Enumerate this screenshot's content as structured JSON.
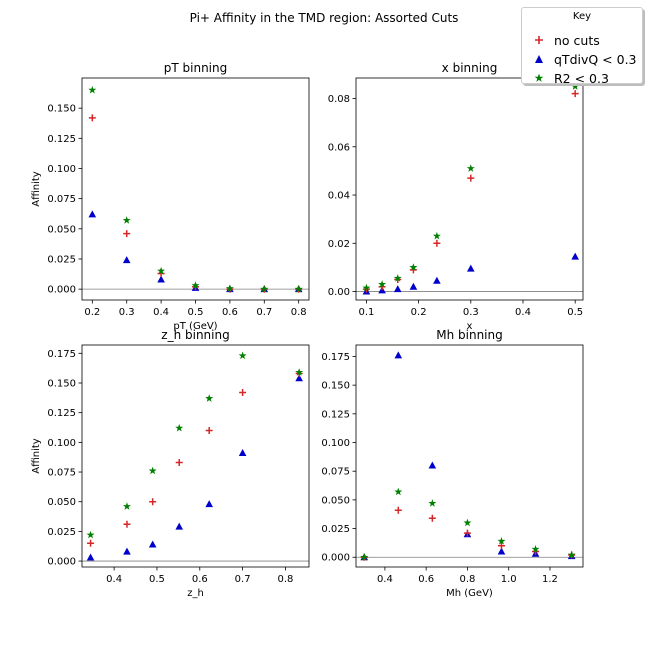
{
  "figure": {
    "suptitle": "Pi+ Affinity in the TMD region: Assorted Cuts"
  },
  "legend": {
    "title": "Key",
    "entries": [
      {
        "label": "no cuts",
        "marker": "plus",
        "color": "#d62728"
      },
      {
        "label": "qTdivQ < 0.3",
        "marker": "triangle",
        "color": "#0000cc"
      },
      {
        "label": "R2 < 0.3",
        "marker": "star",
        "color": "#008000"
      }
    ]
  },
  "chart_data": [
    {
      "type": "scatter",
      "title": "pT binning",
      "xlabel": "pT (GeV)",
      "ylabel": "Affinity",
      "xlim": [
        0.17,
        0.83
      ],
      "ylim": [
        -0.009,
        0.175
      ],
      "xticks": [
        "0.2",
        "0.3",
        "0.4",
        "0.5",
        "0.6",
        "0.7",
        "0.8"
      ],
      "yticks": [
        "0.000",
        "0.025",
        "0.050",
        "0.075",
        "0.100",
        "0.125",
        "0.150"
      ],
      "x": [
        0.2,
        0.3,
        0.4,
        0.5,
        0.6,
        0.7,
        0.8
      ],
      "series": [
        {
          "name": "no cuts",
          "values": [
            0.142,
            0.046,
            0.013,
            0.002,
            0.0,
            0.0,
            0.0
          ]
        },
        {
          "name": "qTdivQ < 0.3",
          "values": [
            0.062,
            0.024,
            0.008,
            0.001,
            0.0,
            0.0,
            0.0
          ]
        },
        {
          "name": "R2 < 0.3",
          "values": [
            0.165,
            0.057,
            0.015,
            0.003,
            0.0005,
            0.0,
            0.0
          ]
        }
      ]
    },
    {
      "type": "scatter",
      "title": "x binning",
      "xlabel": "x",
      "ylabel": "",
      "xlim": [
        0.08,
        0.515
      ],
      "ylim": [
        -0.0035,
        0.0885
      ],
      "xticks": [
        "0.1",
        "0.2",
        "0.3",
        "0.4",
        "0.5"
      ],
      "yticks": [
        "0.00",
        "0.02",
        "0.04",
        "0.06",
        "0.08"
      ],
      "x": [
        0.1,
        0.13,
        0.16,
        0.19,
        0.235,
        0.3,
        0.5
      ],
      "series": [
        {
          "name": "no cuts",
          "values": [
            0.001,
            0.002,
            0.005,
            0.009,
            0.02,
            0.047,
            0.082
          ]
        },
        {
          "name": "qTdivQ < 0.3",
          "values": [
            0.0,
            0.0005,
            0.001,
            0.002,
            0.0045,
            0.0095,
            0.0145
          ]
        },
        {
          "name": "R2 < 0.3",
          "values": [
            0.0015,
            0.003,
            0.0055,
            0.01,
            0.023,
            0.051,
            0.085
          ]
        }
      ]
    },
    {
      "type": "scatter",
      "title": "z_h binning",
      "xlabel": "z_h",
      "ylabel": "Affinity",
      "xlim": [
        0.325,
        0.855
      ],
      "ylim": [
        -0.005,
        0.182
      ],
      "xticks": [
        "0.4",
        "0.5",
        "0.6",
        "0.7",
        "0.8"
      ],
      "yticks": [
        "0.000",
        "0.025",
        "0.050",
        "0.075",
        "0.100",
        "0.125",
        "0.150",
        "0.175"
      ],
      "x": [
        0.345,
        0.43,
        0.49,
        0.552,
        0.622,
        0.7,
        0.832
      ],
      "series": [
        {
          "name": "no cuts",
          "values": [
            0.015,
            0.031,
            0.05,
            0.083,
            0.11,
            0.142,
            0.158
          ]
        },
        {
          "name": "qTdivQ < 0.3",
          "values": [
            0.003,
            0.008,
            0.014,
            0.029,
            0.048,
            0.091,
            0.154
          ]
        },
        {
          "name": "R2 < 0.3",
          "values": [
            0.022,
            0.046,
            0.076,
            0.112,
            0.137,
            0.173,
            0.159
          ]
        }
      ]
    },
    {
      "type": "scatter",
      "title": "Mh binning",
      "xlabel": "Mh (GeV)",
      "ylabel": "",
      "xlim": [
        0.26,
        1.36
      ],
      "ylim": [
        -0.0085,
        0.185
      ],
      "xticks": [
        "0.4",
        "0.6",
        "0.8",
        "1.0",
        "1.2"
      ],
      "yticks": [
        "0.000",
        "0.025",
        "0.050",
        "0.075",
        "0.100",
        "0.125",
        "0.150",
        "0.175"
      ],
      "x": [
        0.3,
        0.465,
        0.63,
        0.8,
        0.965,
        1.13,
        1.305
      ],
      "series": [
        {
          "name": "no cuts",
          "values": [
            0.0,
            0.041,
            0.034,
            0.021,
            0.01,
            0.005,
            0.002
          ]
        },
        {
          "name": "qTdivQ < 0.3",
          "values": [
            0.0,
            0.176,
            0.08,
            0.02,
            0.005,
            0.003,
            0.001
          ]
        },
        {
          "name": "R2 < 0.3",
          "values": [
            0.0,
            0.057,
            0.047,
            0.03,
            0.014,
            0.007,
            0.002
          ]
        }
      ]
    }
  ]
}
